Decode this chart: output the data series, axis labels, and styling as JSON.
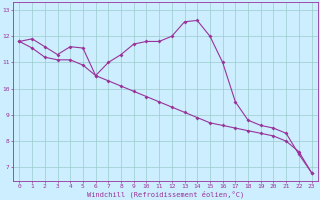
{
  "xlabel": "Windchill (Refroidissement éolien,°C)",
  "bg_color": "#cceeff",
  "line_color": "#993399",
  "grid_color": "#99cccc",
  "x_ticks": [
    0,
    1,
    2,
    3,
    4,
    5,
    6,
    7,
    8,
    9,
    10,
    11,
    12,
    13,
    14,
    15,
    16,
    17,
    18,
    19,
    20,
    21,
    22,
    23
  ],
  "y_ticks": [
    7,
    8,
    9,
    10,
    11,
    12,
    13
  ],
  "ylim": [
    6.5,
    13.3
  ],
  "xlim": [
    -0.5,
    23.5
  ],
  "line1_x": [
    0,
    1,
    2,
    3,
    4,
    5,
    6,
    7,
    8,
    9,
    10,
    11,
    12,
    13,
    14,
    15,
    16,
    17,
    18,
    19,
    20,
    21,
    22,
    23
  ],
  "line1_y": [
    11.8,
    11.9,
    11.6,
    11.3,
    11.6,
    11.55,
    10.5,
    11.0,
    11.3,
    11.7,
    11.8,
    11.8,
    12.0,
    12.55,
    12.6,
    12.0,
    11.0,
    9.5,
    8.8,
    8.6,
    8.5,
    8.3,
    7.5,
    6.8
  ],
  "line2_x": [
    0,
    1,
    2,
    3,
    4,
    5,
    6,
    7,
    8,
    9,
    10,
    11,
    12,
    13,
    14,
    15,
    16,
    17,
    18,
    19,
    20,
    21,
    22,
    23
  ],
  "line2_y": [
    11.8,
    11.55,
    11.2,
    11.1,
    11.1,
    10.9,
    10.5,
    10.3,
    10.1,
    9.9,
    9.7,
    9.5,
    9.3,
    9.1,
    8.9,
    8.7,
    8.6,
    8.5,
    8.4,
    8.3,
    8.2,
    8.0,
    7.6,
    6.8
  ],
  "marker_size": 2.0,
  "line_width": 0.8,
  "tick_fontsize": 4.5,
  "xlabel_fontsize": 5.0
}
